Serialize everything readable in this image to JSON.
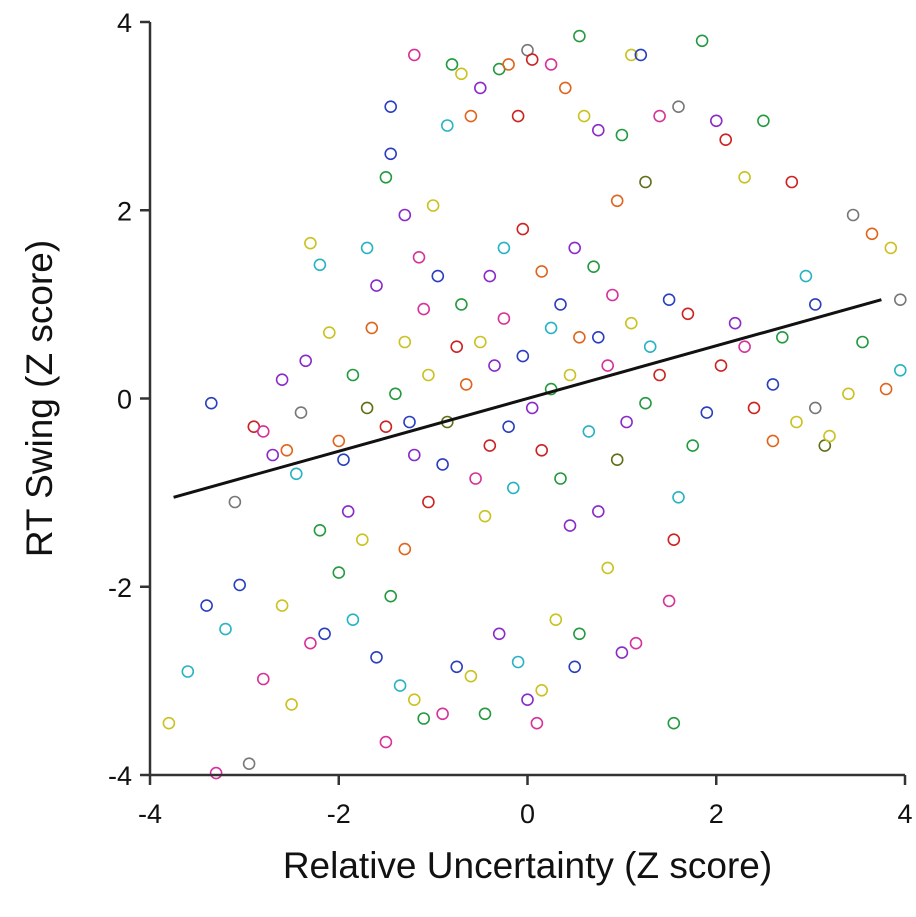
{
  "chart_data": {
    "type": "scatter",
    "title": "",
    "xlabel": "Relative Uncertainty (Z score)",
    "ylabel": "RT Swing (Z score)",
    "xlim": [
      -4,
      4
    ],
    "ylim": [
      -4,
      4
    ],
    "x_ticks": [
      -4,
      -2,
      0,
      2,
      4
    ],
    "y_ticks": [
      -4,
      -2,
      0,
      2,
      4
    ],
    "x_tick_labels": [
      "-4",
      "-2",
      "0",
      "2",
      "4"
    ],
    "y_tick_labels": [
      "-4",
      "-2",
      "0",
      "2",
      "4"
    ],
    "grid": false,
    "legend": "none",
    "marker": "open-circle",
    "fit_line": {
      "x": [
        -3.75,
        3.75
      ],
      "y": [
        -1.05,
        1.05
      ],
      "color": "#111111"
    },
    "palette": [
      "#cc2222",
      "#2a3fbf",
      "#8a2ac8",
      "#239a3f",
      "#c9c21f",
      "#27b3c4",
      "#d6329a",
      "#e0651c",
      "#5f6e1a",
      "#777777"
    ],
    "points": [
      [
        -3.8,
        -3.45,
        4
      ],
      [
        -3.6,
        -2.9,
        5
      ],
      [
        -3.4,
        -2.2,
        1
      ],
      [
        -3.3,
        -3.98,
        6
      ],
      [
        -3.2,
        -2.45,
        5
      ],
      [
        -3.05,
        -1.98,
        1
      ],
      [
        -3.1,
        -1.1,
        9
      ],
      [
        -3.35,
        -0.05,
        1
      ],
      [
        -2.95,
        -3.88,
        9
      ],
      [
        -2.8,
        -2.98,
        6
      ],
      [
        -2.5,
        -3.25,
        4
      ],
      [
        -2.6,
        -2.2,
        4
      ],
      [
        -2.7,
        -0.6,
        2
      ],
      [
        -2.9,
        -0.3,
        0
      ],
      [
        -2.3,
        1.65,
        4
      ],
      [
        -2.2,
        1.42,
        5
      ],
      [
        -2.1,
        0.7,
        4
      ],
      [
        -2.2,
        -1.4,
        3
      ],
      [
        -2.3,
        -2.6,
        6
      ],
      [
        -2.15,
        -2.5,
        1
      ],
      [
        -2.0,
        -0.45,
        7
      ],
      [
        -2.4,
        -0.15,
        9
      ],
      [
        -2.6,
        0.2,
        2
      ],
      [
        -2.0,
        -1.85,
        3
      ],
      [
        -1.85,
        -2.35,
        5
      ],
      [
        -1.9,
        -1.2,
        2
      ],
      [
        -1.7,
        1.6,
        5
      ],
      [
        -1.6,
        1.2,
        2
      ],
      [
        -1.5,
        2.35,
        3
      ],
      [
        -1.45,
        2.6,
        1
      ],
      [
        -1.45,
        3.1,
        1
      ],
      [
        -1.2,
        3.65,
        6
      ],
      [
        -1.3,
        1.95,
        2
      ],
      [
        -1.15,
        1.5,
        6
      ],
      [
        -1.0,
        2.05,
        4
      ],
      [
        -0.85,
        2.9,
        5
      ],
      [
        -0.8,
        3.55,
        3
      ],
      [
        -0.7,
        3.45,
        4
      ],
      [
        -0.6,
        3.0,
        7
      ],
      [
        -0.5,
        3.3,
        2
      ],
      [
        -0.3,
        3.5,
        3
      ],
      [
        -0.2,
        3.55,
        7
      ],
      [
        -0.1,
        3.0,
        0
      ],
      [
        0.0,
        3.7,
        9
      ],
      [
        0.05,
        3.6,
        0
      ],
      [
        0.25,
        3.55,
        6
      ],
      [
        0.4,
        3.3,
        7
      ],
      [
        0.55,
        3.85,
        3
      ],
      [
        0.6,
        3.0,
        4
      ],
      [
        0.75,
        2.85,
        2
      ],
      [
        1.0,
        2.8,
        3
      ],
      [
        1.1,
        3.65,
        4
      ],
      [
        1.2,
        3.65,
        1
      ],
      [
        1.4,
        3.0,
        6
      ],
      [
        1.6,
        3.1,
        9
      ],
      [
        1.85,
        3.8,
        3
      ],
      [
        2.0,
        2.95,
        2
      ],
      [
        2.1,
        2.75,
        0
      ],
      [
        2.5,
        2.95,
        3
      ],
      [
        2.3,
        2.35,
        4
      ],
      [
        2.8,
        2.3,
        0
      ],
      [
        2.95,
        1.3,
        5
      ],
      [
        3.05,
        1.0,
        1
      ],
      [
        3.45,
        1.95,
        9
      ],
      [
        3.65,
        1.75,
        7
      ],
      [
        3.85,
        1.6,
        4
      ],
      [
        3.95,
        1.05,
        9
      ],
      [
        3.55,
        0.6,
        3
      ],
      [
        3.8,
        0.1,
        7
      ],
      [
        3.95,
        0.3,
        5
      ],
      [
        3.4,
        0.05,
        4
      ],
      [
        3.15,
        -0.5,
        8
      ],
      [
        3.05,
        -0.1,
        9
      ],
      [
        2.85,
        -0.25,
        4
      ],
      [
        2.6,
        -0.45,
        7
      ],
      [
        2.3,
        0.55,
        6
      ],
      [
        2.05,
        0.35,
        0
      ],
      [
        1.9,
        -0.15,
        1
      ],
      [
        1.75,
        -0.5,
        3
      ],
      [
        1.6,
        -1.05,
        5
      ],
      [
        1.55,
        -1.5,
        0
      ],
      [
        1.5,
        -2.15,
        6
      ],
      [
        1.55,
        -3.45,
        3
      ],
      [
        1.15,
        -2.6,
        6
      ],
      [
        1.0,
        -2.7,
        2
      ],
      [
        0.85,
        -1.8,
        4
      ],
      [
        0.75,
        -1.2,
        2
      ],
      [
        0.5,
        -2.85,
        1
      ],
      [
        0.55,
        -2.5,
        3
      ],
      [
        0.3,
        -2.35,
        4
      ],
      [
        0.15,
        -3.1,
        4
      ],
      [
        0.1,
        -3.45,
        6
      ],
      [
        0.0,
        -3.2,
        2
      ],
      [
        -0.1,
        -2.8,
        5
      ],
      [
        -0.3,
        -2.5,
        2
      ],
      [
        -0.45,
        -3.35,
        3
      ],
      [
        -0.6,
        -2.95,
        4
      ],
      [
        -0.75,
        -2.85,
        1
      ],
      [
        -0.9,
        -3.35,
        6
      ],
      [
        -1.1,
        -3.4,
        3
      ],
      [
        -1.2,
        -3.2,
        4
      ],
      [
        -1.35,
        -3.05,
        5
      ],
      [
        -1.5,
        -3.65,
        6
      ],
      [
        -1.6,
        -2.75,
        1
      ],
      [
        -1.45,
        -2.1,
        3
      ],
      [
        -1.3,
        -1.6,
        7
      ],
      [
        -1.05,
        -1.1,
        0
      ],
      [
        -0.9,
        -0.7,
        1
      ],
      [
        -1.2,
        -0.6,
        2
      ],
      [
        -1.5,
        -0.3,
        0
      ],
      [
        -1.7,
        -0.1,
        8
      ],
      [
        -1.85,
        0.25,
        3
      ],
      [
        -1.3,
        0.6,
        4
      ],
      [
        -1.1,
        0.95,
        6
      ],
      [
        -0.95,
        1.3,
        1
      ],
      [
        -0.7,
        1.0,
        3
      ],
      [
        -0.5,
        0.6,
        4
      ],
      [
        -0.4,
        1.3,
        2
      ],
      [
        -0.25,
        1.6,
        5
      ],
      [
        -0.05,
        1.8,
        0
      ],
      [
        0.15,
        1.35,
        7
      ],
      [
        0.35,
        1.0,
        1
      ],
      [
        0.5,
        1.6,
        2
      ],
      [
        0.7,
        1.4,
        3
      ],
      [
        0.9,
        1.1,
        6
      ],
      [
        1.1,
        0.8,
        4
      ],
      [
        1.3,
        0.55,
        5
      ],
      [
        1.5,
        1.05,
        1
      ],
      [
        1.7,
        0.9,
        0
      ],
      [
        0.95,
        2.1,
        7
      ],
      [
        1.25,
        2.3,
        8
      ],
      [
        -1.65,
        0.75,
        7
      ],
      [
        -2.45,
        -0.8,
        5
      ],
      [
        -0.4,
        -0.5,
        0
      ],
      [
        -0.2,
        -0.3,
        1
      ],
      [
        0.05,
        -0.1,
        2
      ],
      [
        0.25,
        0.1,
        3
      ],
      [
        0.45,
        0.25,
        4
      ],
      [
        0.65,
        -0.35,
        5
      ],
      [
        0.85,
        0.35,
        6
      ],
      [
        -0.65,
        0.15,
        7
      ],
      [
        -0.85,
        -0.25,
        8
      ],
      [
        -0.05,
        0.45,
        1
      ],
      [
        0.15,
        -0.55,
        0
      ],
      [
        -0.35,
        0.35,
        2
      ],
      [
        0.35,
        -0.85,
        3
      ],
      [
        -0.55,
        -0.85,
        6
      ],
      [
        0.75,
        0.65,
        1
      ],
      [
        -0.75,
        0.55,
        0
      ],
      [
        1.05,
        -0.25,
        2
      ],
      [
        -1.05,
        0.25,
        4
      ],
      [
        0.55,
        0.65,
        7
      ],
      [
        -0.15,
        -0.95,
        5
      ],
      [
        0.95,
        -0.65,
        8
      ],
      [
        1.25,
        -0.05,
        3
      ],
      [
        -1.25,
        -0.25,
        1
      ],
      [
        -0.25,
        0.85,
        6
      ],
      [
        0.25,
        0.75,
        5
      ],
      [
        -0.45,
        -1.25,
        4
      ],
      [
        0.45,
        -1.35,
        2
      ],
      [
        1.4,
        0.25,
        0
      ],
      [
        -1.4,
        0.05,
        3
      ],
      [
        2.6,
        0.15,
        1
      ],
      [
        2.4,
        -0.1,
        0
      ],
      [
        2.2,
        0.8,
        2
      ],
      [
        2.7,
        0.65,
        3
      ],
      [
        3.2,
        -0.4,
        4
      ],
      [
        -2.8,
        -0.35,
        6
      ],
      [
        -2.55,
        -0.55,
        7
      ],
      [
        -2.35,
        0.4,
        2
      ],
      [
        -1.95,
        -0.65,
        1
      ],
      [
        -1.75,
        -1.5,
        4
      ]
    ]
  }
}
